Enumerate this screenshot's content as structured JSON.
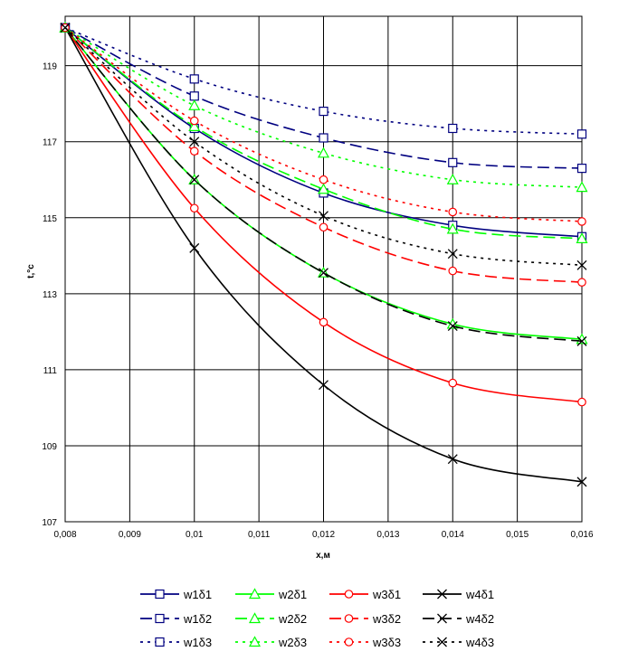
{
  "chart_data": {
    "type": "line",
    "title": "",
    "xlabel": "x,м",
    "ylabel": "t,°c",
    "xlim": [
      0.008,
      0.016
    ],
    "ylim": [
      107,
      120.3
    ],
    "x_ticks": [
      0.008,
      0.009,
      0.01,
      0.011,
      0.012,
      0.013,
      0.014,
      0.015,
      0.016
    ],
    "x_tick_labels": [
      "0,008",
      "0,009",
      "0,01",
      "0,011",
      "0,012",
      "0,013",
      "0,014",
      "0,015",
      "0,016"
    ],
    "y_ticks": [
      107,
      109,
      111,
      113,
      115,
      117,
      119
    ],
    "y_tick_labels": [
      "107",
      "109",
      "111",
      "113",
      "115",
      "117",
      "119"
    ],
    "grid": true,
    "legend_position": "bottom",
    "x": [
      0.008,
      0.01,
      0.012,
      0.014,
      0.016
    ],
    "series": [
      {
        "name": "w1δ1",
        "color": "#000080",
        "dash": "solid",
        "marker": "square",
        "values": [
          120,
          117.35,
          115.65,
          114.8,
          114.5
        ]
      },
      {
        "name": "w2δ1",
        "color": "#00ff00",
        "dash": "solid",
        "marker": "triangle",
        "values": [
          120,
          116.0,
          113.55,
          112.2,
          111.8
        ]
      },
      {
        "name": "w3δ1",
        "color": "#ff0000",
        "dash": "solid",
        "marker": "circle",
        "values": [
          120,
          115.25,
          112.25,
          110.65,
          110.15
        ]
      },
      {
        "name": "w4δ1",
        "color": "#000000",
        "dash": "solid",
        "marker": "x",
        "values": [
          120,
          114.2,
          110.6,
          108.65,
          108.05
        ]
      },
      {
        "name": "w1δ2",
        "color": "#000080",
        "dash": "long",
        "marker": "square",
        "values": [
          120,
          118.2,
          117.1,
          116.45,
          116.3
        ]
      },
      {
        "name": "w2δ2",
        "color": "#00ff00",
        "dash": "long",
        "marker": "triangle",
        "values": [
          120,
          117.4,
          115.75,
          114.7,
          114.45
        ]
      },
      {
        "name": "w3δ2",
        "color": "#ff0000",
        "dash": "long",
        "marker": "circle",
        "values": [
          120,
          116.75,
          114.75,
          113.6,
          113.3
        ]
      },
      {
        "name": "w4δ2",
        "color": "#000000",
        "dash": "long",
        "marker": "x",
        "values": [
          120,
          116.0,
          113.55,
          112.15,
          111.75
        ]
      },
      {
        "name": "w1δ3",
        "color": "#000080",
        "dash": "dot",
        "marker": "square",
        "values": [
          120,
          118.65,
          117.8,
          117.35,
          117.2
        ]
      },
      {
        "name": "w2δ3",
        "color": "#00ff00",
        "dash": "dot",
        "marker": "triangle",
        "values": [
          120,
          117.95,
          116.7,
          116.0,
          115.8
        ]
      },
      {
        "name": "w3δ3",
        "color": "#ff0000",
        "dash": "dot",
        "marker": "circle",
        "values": [
          120,
          117.55,
          116.0,
          115.15,
          114.9
        ]
      },
      {
        "name": "w4δ3",
        "color": "#000000",
        "dash": "dot",
        "marker": "x",
        "values": [
          120,
          117.0,
          115.05,
          114.05,
          113.75
        ]
      }
    ]
  }
}
